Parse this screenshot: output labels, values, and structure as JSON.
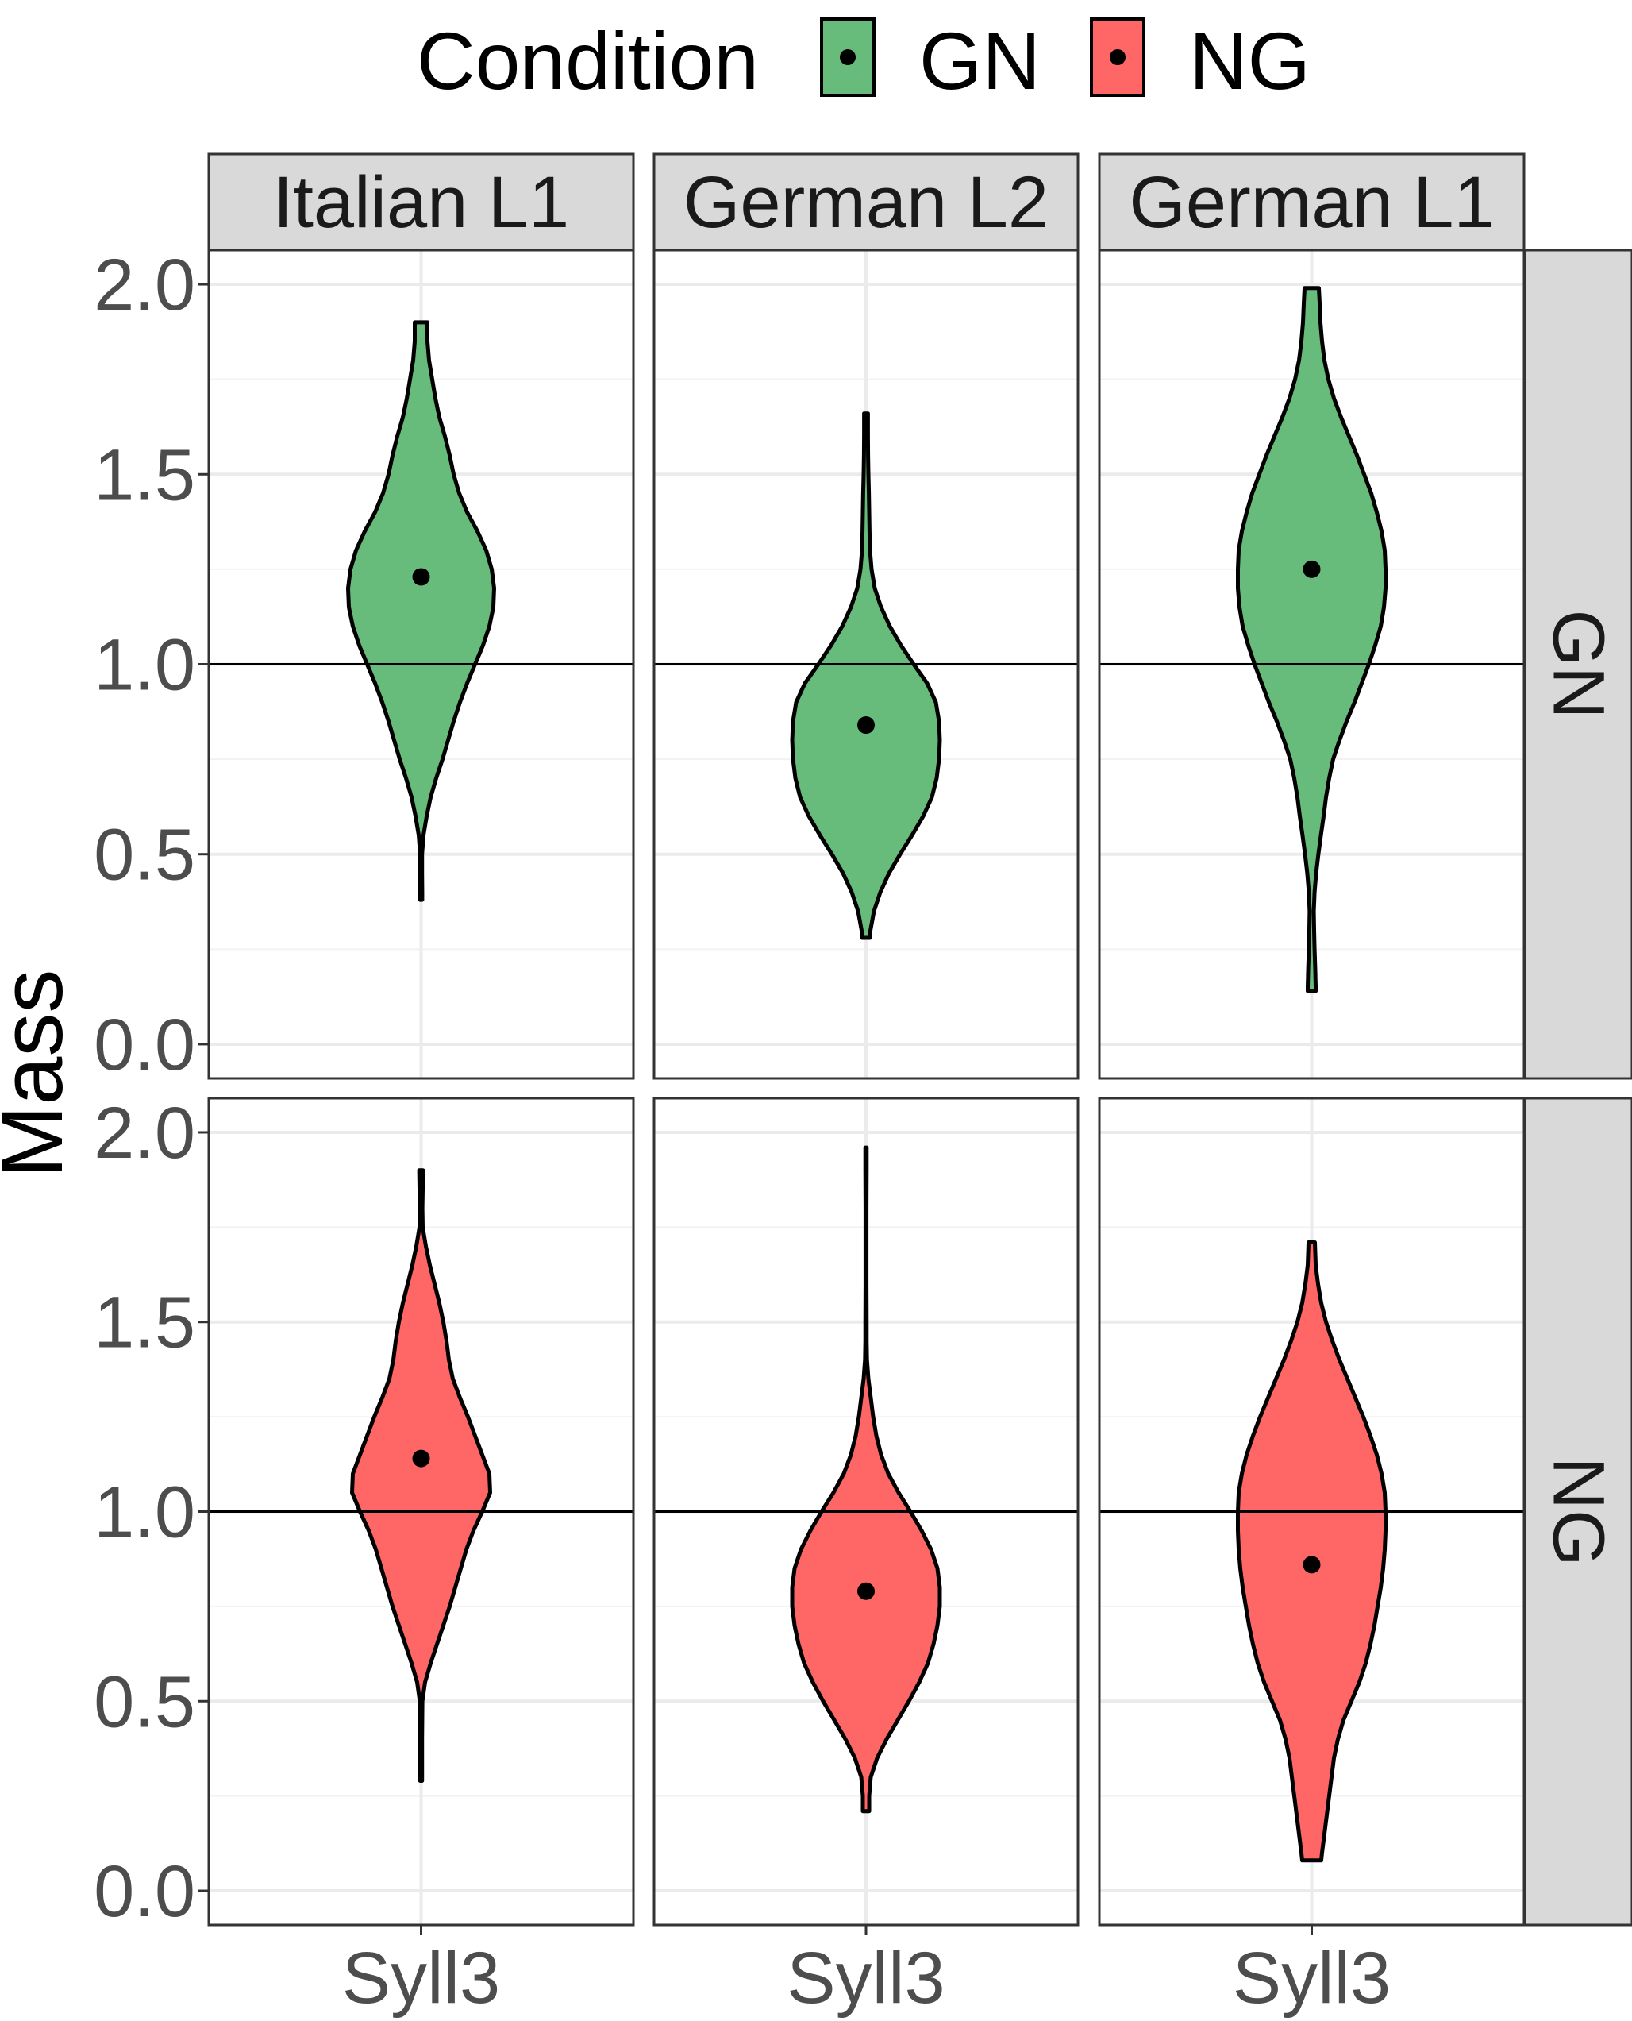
{
  "legend": {
    "title": "Condition",
    "items": [
      {
        "label": "GN",
        "color": "#67bb7b"
      },
      {
        "label": "NG",
        "color": "#ff6666"
      }
    ]
  },
  "chart_data": {
    "type": "violin",
    "ylabel": "Mass",
    "ylim": [
      0,
      2.0
    ],
    "yticks": [
      "0.0",
      "0.5",
      "1.0",
      "1.5",
      "2.0"
    ],
    "yticks_values": [
      0,
      0.5,
      1.0,
      1.5,
      2.0
    ],
    "xcategory": "Syll3",
    "columns": [
      "Italian L1",
      "German L2",
      "German L1"
    ],
    "rows": [
      "GN",
      "NG"
    ],
    "reference_line": 1.0,
    "grid": true,
    "legend_position": "top",
    "colors": {
      "GN": "#67bb7b",
      "NG": "#ff6666"
    },
    "panels": [
      {
        "row": "GN",
        "column": "Italian L1",
        "mean": 1.23,
        "profile": [
          [
            0.38,
            0.007
          ],
          [
            0.4,
            0.007
          ],
          [
            0.45,
            0.006
          ],
          [
            0.5,
            0.006
          ],
          [
            0.55,
            0.015
          ],
          [
            0.6,
            0.035
          ],
          [
            0.65,
            0.06
          ],
          [
            0.7,
            0.095
          ],
          [
            0.75,
            0.135
          ],
          [
            0.8,
            0.17
          ],
          [
            0.85,
            0.205
          ],
          [
            0.9,
            0.245
          ],
          [
            0.95,
            0.29
          ],
          [
            1.0,
            0.34
          ],
          [
            1.05,
            0.39
          ],
          [
            1.1,
            0.43
          ],
          [
            1.15,
            0.455
          ],
          [
            1.2,
            0.46
          ],
          [
            1.25,
            0.445
          ],
          [
            1.3,
            0.41
          ],
          [
            1.35,
            0.355
          ],
          [
            1.4,
            0.29
          ],
          [
            1.45,
            0.24
          ],
          [
            1.5,
            0.205
          ],
          [
            1.55,
            0.18
          ],
          [
            1.6,
            0.15
          ],
          [
            1.65,
            0.115
          ],
          [
            1.7,
            0.09
          ],
          [
            1.75,
            0.07
          ],
          [
            1.8,
            0.05
          ],
          [
            1.85,
            0.04
          ],
          [
            1.9,
            0.04
          ]
        ]
      },
      {
        "row": "GN",
        "column": "German L2",
        "mean": 0.84,
        "profile": [
          [
            0.28,
            0.025
          ],
          [
            0.3,
            0.028
          ],
          [
            0.35,
            0.05
          ],
          [
            0.4,
            0.09
          ],
          [
            0.45,
            0.145
          ],
          [
            0.5,
            0.215
          ],
          [
            0.55,
            0.29
          ],
          [
            0.6,
            0.36
          ],
          [
            0.65,
            0.415
          ],
          [
            0.7,
            0.445
          ],
          [
            0.75,
            0.46
          ],
          [
            0.8,
            0.465
          ],
          [
            0.85,
            0.46
          ],
          [
            0.9,
            0.44
          ],
          [
            0.95,
            0.385
          ],
          [
            1.0,
            0.3
          ],
          [
            1.05,
            0.22
          ],
          [
            1.1,
            0.15
          ],
          [
            1.15,
            0.095
          ],
          [
            1.2,
            0.055
          ],
          [
            1.25,
            0.035
          ],
          [
            1.3,
            0.025
          ],
          [
            1.35,
            0.022
          ],
          [
            1.4,
            0.02
          ],
          [
            1.45,
            0.018
          ],
          [
            1.5,
            0.015
          ],
          [
            1.55,
            0.013
          ],
          [
            1.6,
            0.012
          ],
          [
            1.66,
            0.012
          ]
        ]
      },
      {
        "row": "GN",
        "column": "German L1",
        "mean": 1.25,
        "profile": [
          [
            0.14,
            0.025
          ],
          [
            0.15,
            0.025
          ],
          [
            0.2,
            0.022
          ],
          [
            0.25,
            0.018
          ],
          [
            0.3,
            0.015
          ],
          [
            0.35,
            0.013
          ],
          [
            0.4,
            0.018
          ],
          [
            0.45,
            0.028
          ],
          [
            0.5,
            0.042
          ],
          [
            0.55,
            0.058
          ],
          [
            0.6,
            0.075
          ],
          [
            0.65,
            0.09
          ],
          [
            0.7,
            0.11
          ],
          [
            0.75,
            0.135
          ],
          [
            0.8,
            0.175
          ],
          [
            0.85,
            0.22
          ],
          [
            0.9,
            0.27
          ],
          [
            0.95,
            0.315
          ],
          [
            1.0,
            0.36
          ],
          [
            1.05,
            0.4
          ],
          [
            1.1,
            0.435
          ],
          [
            1.15,
            0.455
          ],
          [
            1.2,
            0.465
          ],
          [
            1.25,
            0.465
          ],
          [
            1.3,
            0.46
          ],
          [
            1.35,
            0.44
          ],
          [
            1.4,
            0.41
          ],
          [
            1.45,
            0.375
          ],
          [
            1.5,
            0.33
          ],
          [
            1.55,
            0.285
          ],
          [
            1.6,
            0.235
          ],
          [
            1.65,
            0.185
          ],
          [
            1.7,
            0.14
          ],
          [
            1.75,
            0.105
          ],
          [
            1.8,
            0.08
          ],
          [
            1.85,
            0.065
          ],
          [
            1.9,
            0.055
          ],
          [
            1.95,
            0.05
          ],
          [
            1.99,
            0.045
          ]
        ]
      },
      {
        "row": "NG",
        "column": "Italian L1",
        "mean": 1.14,
        "profile": [
          [
            0.29,
            0.006
          ],
          [
            0.3,
            0.006
          ],
          [
            0.35,
            0.006
          ],
          [
            0.4,
            0.006
          ],
          [
            0.45,
            0.007
          ],
          [
            0.5,
            0.008
          ],
          [
            0.55,
            0.025
          ],
          [
            0.6,
            0.06
          ],
          [
            0.65,
            0.1
          ],
          [
            0.7,
            0.14
          ],
          [
            0.75,
            0.18
          ],
          [
            0.8,
            0.215
          ],
          [
            0.85,
            0.25
          ],
          [
            0.9,
            0.285
          ],
          [
            0.95,
            0.33
          ],
          [
            1.0,
            0.385
          ],
          [
            1.05,
            0.435
          ],
          [
            1.1,
            0.43
          ],
          [
            1.15,
            0.385
          ],
          [
            1.2,
            0.34
          ],
          [
            1.25,
            0.295
          ],
          [
            1.3,
            0.245
          ],
          [
            1.35,
            0.2
          ],
          [
            1.4,
            0.175
          ],
          [
            1.45,
            0.16
          ],
          [
            1.5,
            0.14
          ],
          [
            1.55,
            0.115
          ],
          [
            1.6,
            0.085
          ],
          [
            1.65,
            0.055
          ],
          [
            1.7,
            0.03
          ],
          [
            1.75,
            0.01
          ],
          [
            1.8,
            0.008
          ],
          [
            1.85,
            0.01
          ],
          [
            1.9,
            0.012
          ]
        ]
      },
      {
        "row": "NG",
        "column": "German L2",
        "mean": 0.79,
        "profile": [
          [
            0.21,
            0.02
          ],
          [
            0.25,
            0.02
          ],
          [
            0.3,
            0.03
          ],
          [
            0.35,
            0.07
          ],
          [
            0.4,
            0.13
          ],
          [
            0.45,
            0.2
          ],
          [
            0.5,
            0.27
          ],
          [
            0.55,
            0.335
          ],
          [
            0.6,
            0.39
          ],
          [
            0.65,
            0.425
          ],
          [
            0.7,
            0.45
          ],
          [
            0.75,
            0.465
          ],
          [
            0.8,
            0.465
          ],
          [
            0.85,
            0.45
          ],
          [
            0.9,
            0.41
          ],
          [
            0.95,
            0.35
          ],
          [
            1.0,
            0.28
          ],
          [
            1.05,
            0.205
          ],
          [
            1.1,
            0.14
          ],
          [
            1.15,
            0.095
          ],
          [
            1.2,
            0.065
          ],
          [
            1.25,
            0.045
          ],
          [
            1.3,
            0.03
          ],
          [
            1.35,
            0.015
          ],
          [
            1.4,
            0.006
          ],
          [
            1.45,
            0.004
          ],
          [
            1.5,
            0.004
          ],
          [
            1.6,
            0.003
          ],
          [
            1.7,
            0.003
          ],
          [
            1.8,
            0.003
          ],
          [
            1.9,
            0.004
          ],
          [
            1.96,
            0.004
          ]
        ]
      },
      {
        "row": "NG",
        "column": "German L1",
        "mean": 0.86,
        "profile": [
          [
            0.08,
            0.06
          ],
          [
            0.1,
            0.065
          ],
          [
            0.15,
            0.08
          ],
          [
            0.2,
            0.095
          ],
          [
            0.25,
            0.11
          ],
          [
            0.3,
            0.125
          ],
          [
            0.35,
            0.14
          ],
          [
            0.4,
            0.165
          ],
          [
            0.45,
            0.2
          ],
          [
            0.5,
            0.25
          ],
          [
            0.55,
            0.3
          ],
          [
            0.6,
            0.34
          ],
          [
            0.65,
            0.37
          ],
          [
            0.7,
            0.395
          ],
          [
            0.75,
            0.415
          ],
          [
            0.8,
            0.435
          ],
          [
            0.85,
            0.45
          ],
          [
            0.9,
            0.46
          ],
          [
            0.95,
            0.465
          ],
          [
            1.0,
            0.465
          ],
          [
            1.05,
            0.46
          ],
          [
            1.1,
            0.44
          ],
          [
            1.15,
            0.41
          ],
          [
            1.2,
            0.37
          ],
          [
            1.25,
            0.325
          ],
          [
            1.3,
            0.275
          ],
          [
            1.35,
            0.225
          ],
          [
            1.4,
            0.175
          ],
          [
            1.45,
            0.13
          ],
          [
            1.5,
            0.09
          ],
          [
            1.55,
            0.06
          ],
          [
            1.6,
            0.04
          ],
          [
            1.65,
            0.025
          ],
          [
            1.71,
            0.02
          ]
        ]
      }
    ]
  }
}
